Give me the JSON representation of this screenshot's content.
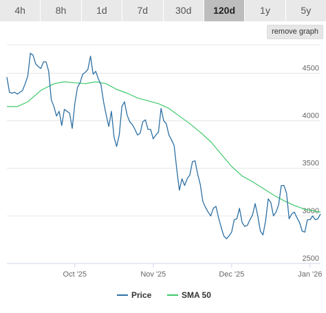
{
  "tabs": [
    {
      "label": "4h",
      "active": false
    },
    {
      "label": "8h",
      "active": false
    },
    {
      "label": "1d",
      "active": false
    },
    {
      "label": "7d",
      "active": false
    },
    {
      "label": "30d",
      "active": false
    },
    {
      "label": "120d",
      "active": true
    },
    {
      "label": "1y",
      "active": false
    },
    {
      "label": "5y",
      "active": false
    }
  ],
  "remove_graph_label": "remove graph",
  "colors": {
    "price": "#2c6fa3",
    "sma": "#3ec96a",
    "grid": "#e6e6e6"
  },
  "chart_data": {
    "type": "line",
    "xlabel": "",
    "ylabel": "",
    "ylim": [
      2500,
      4800
    ],
    "yticks": [
      2500,
      3000,
      3500,
      4000,
      4500
    ],
    "xlim": [
      0,
      120
    ],
    "xticks": [
      {
        "label": "Oct '25",
        "x": 26
      },
      {
        "label": "Nov '25",
        "x": 56
      },
      {
        "label": "Dec '25",
        "x": 86
      },
      {
        "label": "Jan '26",
        "x": 116
      }
    ],
    "series": [
      {
        "name": "Price",
        "points": [
          [
            0,
            4460
          ],
          [
            1,
            4300
          ],
          [
            2,
            4290
          ],
          [
            3,
            4300
          ],
          [
            4,
            4280
          ],
          [
            5,
            4300
          ],
          [
            6,
            4320
          ],
          [
            7,
            4390
          ],
          [
            8,
            4470
          ],
          [
            9,
            4710
          ],
          [
            10,
            4690
          ],
          [
            11,
            4600
          ],
          [
            12,
            4570
          ],
          [
            13,
            4550
          ],
          [
            14,
            4620
          ],
          [
            15,
            4620
          ],
          [
            16,
            4520
          ],
          [
            17,
            4220
          ],
          [
            18,
            4150
          ],
          [
            19,
            4050
          ],
          [
            20,
            4100
          ],
          [
            21,
            3950
          ],
          [
            22,
            4120
          ],
          [
            23,
            4100
          ],
          [
            24,
            4080
          ],
          [
            25,
            3920
          ],
          [
            26,
            4180
          ],
          [
            27,
            4350
          ],
          [
            28,
            4400
          ],
          [
            29,
            4490
          ],
          [
            30,
            4510
          ],
          [
            31,
            4540
          ],
          [
            32,
            4680
          ],
          [
            33,
            4490
          ],
          [
            34,
            4520
          ],
          [
            35,
            4440
          ],
          [
            36,
            4380
          ],
          [
            37,
            4200
          ],
          [
            38,
            4060
          ],
          [
            39,
            3940
          ],
          [
            40,
            4100
          ],
          [
            41,
            3830
          ],
          [
            42,
            3730
          ],
          [
            43,
            3850
          ],
          [
            44,
            4150
          ],
          [
            45,
            4200
          ],
          [
            46,
            4060
          ],
          [
            47,
            3990
          ],
          [
            48,
            3960
          ],
          [
            49,
            3910
          ],
          [
            50,
            3850
          ],
          [
            51,
            3870
          ],
          [
            52,
            3990
          ],
          [
            53,
            4010
          ],
          [
            54,
            3910
          ],
          [
            55,
            3910
          ],
          [
            56,
            3810
          ],
          [
            57,
            3850
          ],
          [
            58,
            3880
          ],
          [
            59,
            4130
          ],
          [
            60,
            4000
          ],
          [
            61,
            3970
          ],
          [
            62,
            3850
          ],
          [
            63,
            3800
          ],
          [
            64,
            3740
          ],
          [
            65,
            3490
          ],
          [
            66,
            3270
          ],
          [
            67,
            3390
          ],
          [
            68,
            3320
          ],
          [
            69,
            3390
          ],
          [
            70,
            3430
          ],
          [
            71,
            3570
          ],
          [
            72,
            3580
          ],
          [
            73,
            3440
          ],
          [
            74,
            3330
          ],
          [
            75,
            3150
          ],
          [
            76,
            3090
          ],
          [
            77,
            3040
          ],
          [
            78,
            3000
          ],
          [
            79,
            3080
          ],
          [
            80,
            3100
          ],
          [
            81,
            2980
          ],
          [
            82,
            2880
          ],
          [
            83,
            2790
          ],
          [
            84,
            2760
          ],
          [
            85,
            2790
          ],
          [
            86,
            2830
          ],
          [
            87,
            2960
          ],
          [
            88,
            2970
          ],
          [
            89,
            3080
          ],
          [
            90,
            2930
          ],
          [
            91,
            2890
          ],
          [
            92,
            2900
          ],
          [
            93,
            2960
          ],
          [
            94,
            3010
          ],
          [
            95,
            3130
          ],
          [
            96,
            3000
          ],
          [
            97,
            2840
          ],
          [
            98,
            2800
          ],
          [
            99,
            2950
          ],
          [
            100,
            3180
          ],
          [
            101,
            3140
          ],
          [
            102,
            3000
          ],
          [
            103,
            3040
          ],
          [
            104,
            3120
          ],
          [
            105,
            3320
          ],
          [
            106,
            3320
          ],
          [
            107,
            3240
          ],
          [
            108,
            2970
          ],
          [
            109,
            3020
          ],
          [
            110,
            3040
          ],
          [
            111,
            2980
          ],
          [
            112,
            2930
          ],
          [
            113,
            2840
          ],
          [
            114,
            2830
          ],
          [
            115,
            2960
          ],
          [
            116,
            2960
          ],
          [
            117,
            3000
          ],
          [
            118,
            2960
          ],
          [
            119,
            2970
          ],
          [
            120,
            3020
          ]
        ]
      },
      {
        "name": "SMA 50",
        "points": [
          [
            0,
            4150
          ],
          [
            4,
            4150
          ],
          [
            8,
            4200
          ],
          [
            13,
            4320
          ],
          [
            18,
            4390
          ],
          [
            22,
            4410
          ],
          [
            26,
            4400
          ],
          [
            30,
            4390
          ],
          [
            34,
            4410
          ],
          [
            38,
            4390
          ],
          [
            42,
            4330
          ],
          [
            46,
            4290
          ],
          [
            50,
            4240
          ],
          [
            54,
            4210
          ],
          [
            58,
            4180
          ],
          [
            62,
            4130
          ],
          [
            66,
            4050
          ],
          [
            70,
            3970
          ],
          [
            74,
            3880
          ],
          [
            78,
            3780
          ],
          [
            82,
            3650
          ],
          [
            86,
            3520
          ],
          [
            90,
            3420
          ],
          [
            94,
            3360
          ],
          [
            98,
            3290
          ],
          [
            102,
            3220
          ],
          [
            106,
            3160
          ],
          [
            110,
            3110
          ],
          [
            114,
            3070
          ],
          [
            118,
            3050
          ],
          [
            120,
            3040
          ]
        ]
      }
    ]
  }
}
